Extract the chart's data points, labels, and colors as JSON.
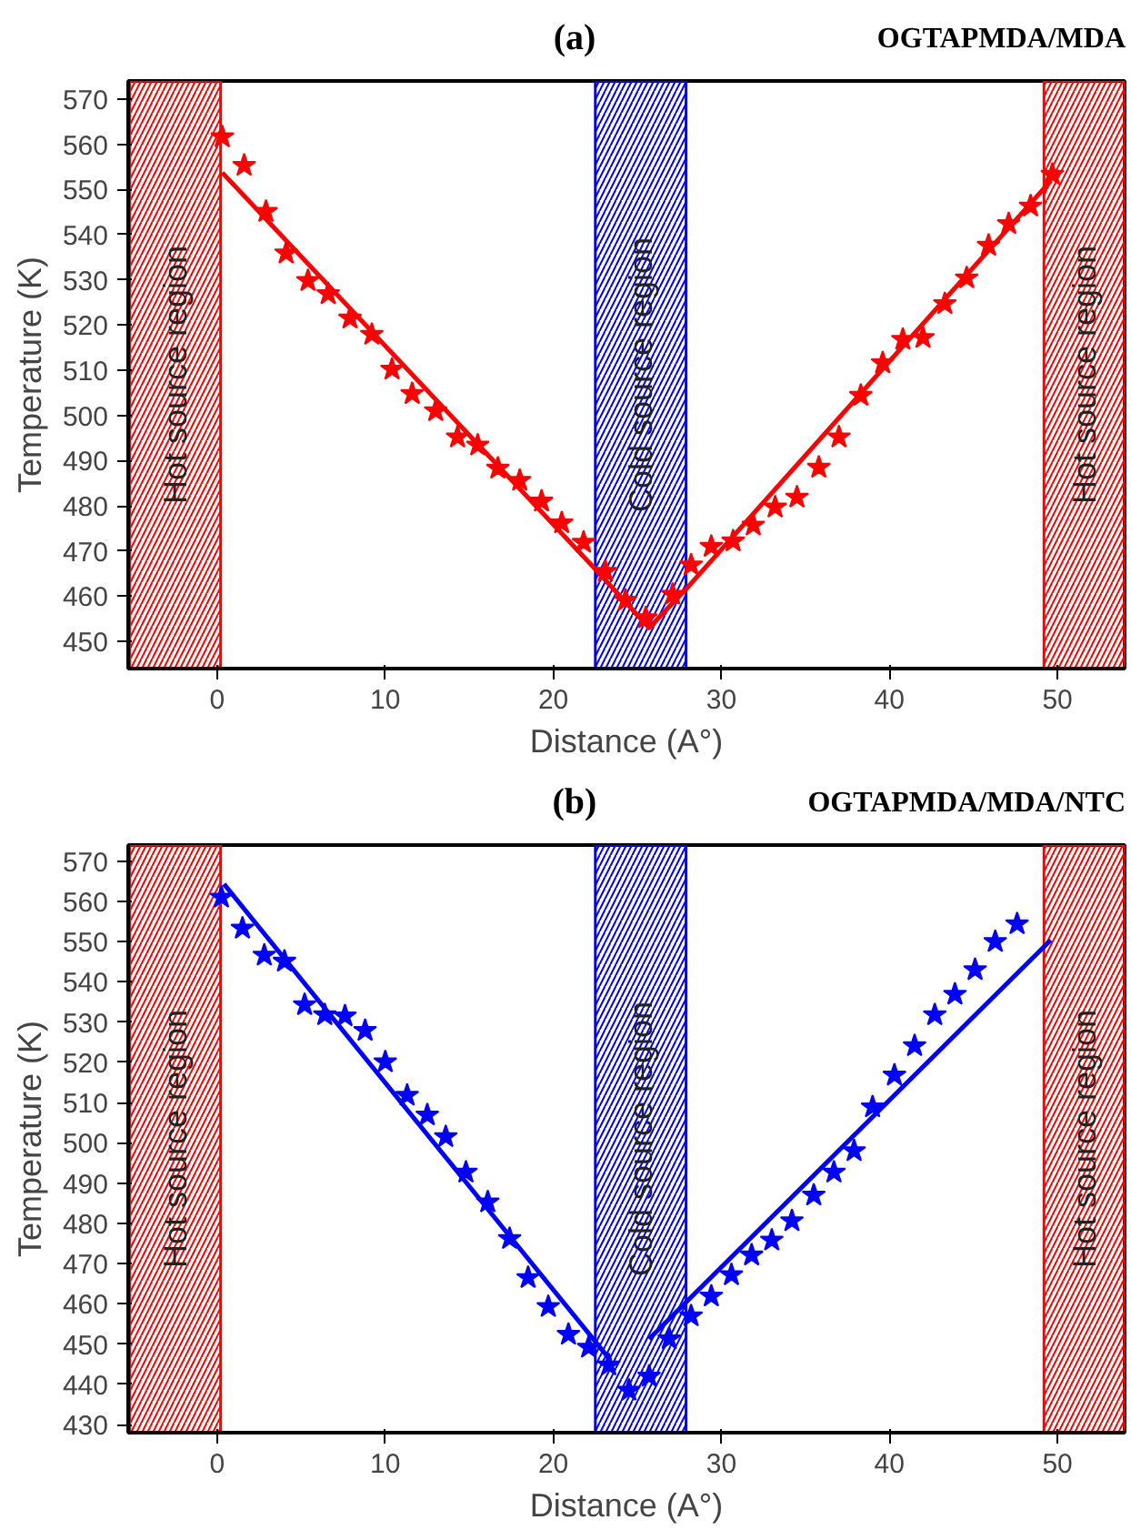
{
  "chart_data": [
    {
      "type": "scatter",
      "title": "(a)",
      "subtitle": "OGTAPMDA/MDA",
      "xlabel": "Distance (A°)",
      "ylabel": "Temperature (K)",
      "xlim": [
        -5.3,
        54
      ],
      "ylim": [
        444,
        574
      ],
      "xticks": [
        0,
        10,
        20,
        30,
        40,
        50
      ],
      "yticks": [
        450,
        460,
        470,
        480,
        490,
        500,
        510,
        520,
        530,
        540,
        550,
        560,
        570
      ],
      "grid": false,
      "bands": [
        {
          "axis": "x",
          "from": -5.2,
          "to": 0.2,
          "label": "Hot source region",
          "color": "#ff0000"
        },
        {
          "axis": "x",
          "from": 22.5,
          "to": 27.9,
          "label": "Cold source region",
          "color": "#0000ff"
        },
        {
          "axis": "x",
          "from": 49.2,
          "to": 54,
          "label": "Hot source region",
          "color": "#ff0000"
        }
      ],
      "series": [
        {
          "marker": "star",
          "color": "#ff0000",
          "x": [
            0.3,
            1.6,
            2.9,
            4.1,
            5.4,
            6.6,
            7.9,
            9.2,
            10.4,
            11.6,
            13.0,
            14.3,
            15.5,
            16.7,
            18.0,
            19.3,
            20.5,
            21.8,
            23.1,
            24.3,
            25.5,
            27.1,
            28.2,
            29.4,
            30.7,
            31.9,
            33.2,
            34.5,
            35.8,
            37.0,
            38.3,
            39.6,
            40.8,
            42.0,
            43.3,
            44.6,
            45.9,
            47.1,
            48.4,
            49.7
          ],
          "values": [
            561.6,
            555.3,
            545.1,
            535.9,
            529.8,
            526.9,
            521.5,
            517.9,
            510.2,
            504.8,
            501.0,
            495.2,
            493.4,
            488.3,
            485.6,
            481.0,
            476.2,
            471.9,
            465.5,
            459.1,
            455.2,
            460.4,
            466.9,
            471.0,
            472.2,
            475.7,
            479.7,
            481.9,
            488.5,
            495.2,
            504.4,
            511.6,
            516.8,
            517.2,
            524.7,
            530.4,
            537.6,
            542.4,
            546.3,
            553.3
          ]
        },
        {
          "type": "line",
          "color": "#ff0000",
          "line_style": "solid",
          "x": [
            0.3,
            22.4,
            25.7,
            27.9,
            49.6
          ],
          "values": [
            553.7,
            466.4,
            453,
            461.6,
            551.9
          ]
        }
      ]
    },
    {
      "type": "scatter",
      "title": "(b)",
      "subtitle": "OGTAPMDA/MDA/NTC",
      "xlabel": "Distance (A°)",
      "ylabel": "Temperature (K)",
      "xlim": [
        -5.3,
        54
      ],
      "ylim": [
        428,
        574
      ],
      "xticks": [
        0,
        10,
        20,
        30,
        40,
        50
      ],
      "yticks": [
        430,
        440,
        450,
        460,
        470,
        480,
        490,
        500,
        510,
        520,
        530,
        540,
        550,
        560,
        570
      ],
      "grid": false,
      "bands": [
        {
          "axis": "x",
          "from": -5.2,
          "to": 0.2,
          "label": "Hot source region",
          "color": "#ff0000"
        },
        {
          "axis": "x",
          "from": 22.5,
          "to": 27.9,
          "label": "Cold source region",
          "color": "#0000ff"
        },
        {
          "axis": "x",
          "from": 49.2,
          "to": 54,
          "label": "Hot source region",
          "color": "#ff0000"
        }
      ],
      "series": [
        {
          "marker": "star",
          "color": "#0000ff",
          "x": [
            0.25,
            1.5,
            2.8,
            4.0,
            5.2,
            6.4,
            7.6,
            8.8,
            10.0,
            11.3,
            12.5,
            13.6,
            14.8,
            16.1,
            17.4,
            18.5,
            19.7,
            20.9,
            22.1,
            23.3,
            24.5,
            25.7,
            26.9,
            28.2,
            29.4,
            30.6,
            31.8,
            33.0,
            34.2,
            35.5,
            36.7,
            37.9,
            39.0,
            40.3,
            41.5,
            42.7,
            43.9,
            45.1,
            46.3,
            47.6
          ],
          "values": [
            561.0,
            553.3,
            546.6,
            545.1,
            534.3,
            531.8,
            531.5,
            527.9,
            520.1,
            511.8,
            506.9,
            501.5,
            492.7,
            485.3,
            476.2,
            466.5,
            459.3,
            452.4,
            449.2,
            444.8,
            438.5,
            442.0,
            451.3,
            457.0,
            461.9,
            467.2,
            472.1,
            475.8,
            480.6,
            487.0,
            492.7,
            498.0,
            508.9,
            516.8,
            524.1,
            531.8,
            536.9,
            543.0,
            550.0,
            554.4
          ]
        },
        {
          "type": "line",
          "color": "#0000ff",
          "line_style": "solid",
          "x": [
            0.4,
            23.4
          ],
          "values": [
            564.3,
            446
          ]
        },
        {
          "type": "line",
          "color": "#0000ff",
          "line_style": "solid",
          "x": [
            25.7,
            49.6
          ],
          "values": [
            451.3,
            550.4
          ]
        }
      ]
    }
  ]
}
